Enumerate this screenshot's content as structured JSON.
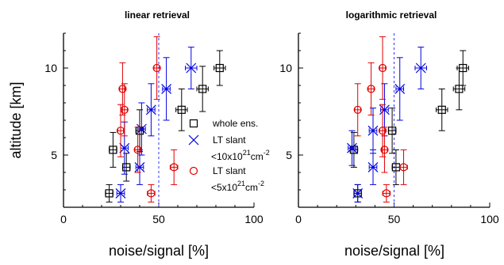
{
  "colors": {
    "black": "#000000",
    "blue": "#0000e0",
    "red": "#e00000",
    "vline": "#3333ff"
  },
  "chart_data": [
    {
      "type": "scatter",
      "title": "linear retrieval",
      "xlabel": "noise/signal [%]",
      "ylabel": "altitude [km]",
      "xlim": [
        0,
        100
      ],
      "ylim": [
        2,
        12
      ],
      "xticks": [
        0,
        50,
        100
      ],
      "yticks": [
        5,
        10
      ],
      "reference_line_x": 50,
      "series": [
        {
          "name": "whole ens.",
          "marker": "square",
          "color": "#000000",
          "points": [
            {
              "x": 24,
              "y": 2.8,
              "xerr": 2,
              "yerr": 0.5
            },
            {
              "x": 26,
              "y": 5.3,
              "xerr": 2,
              "yerr": 1.0
            },
            {
              "x": 33,
              "y": 4.3,
              "xerr": 2,
              "yerr": 0.8
            },
            {
              "x": 40,
              "y": 6.4,
              "xerr": 2,
              "yerr": 1.2
            },
            {
              "x": 62,
              "y": 7.6,
              "xerr": 3,
              "yerr": 1.2
            },
            {
              "x": 73,
              "y": 8.8,
              "xerr": 3,
              "yerr": 1.3
            },
            {
              "x": 82,
              "y": 10.0,
              "xerr": 3,
              "yerr": 1.0
            }
          ]
        },
        {
          "name": "LT slant",
          "note": "<10x10²¹cm⁻²",
          "marker": "x",
          "color": "#0000e0",
          "points": [
            {
              "x": 30,
              "y": 2.8,
              "xerr": 2,
              "yerr": 0.5
            },
            {
              "x": 32,
              "y": 5.4,
              "xerr": 2,
              "yerr": 1.5
            },
            {
              "x": 40,
              "y": 4.3,
              "xerr": 2,
              "yerr": 1.0
            },
            {
              "x": 41,
              "y": 6.5,
              "xerr": 2,
              "yerr": 1.5
            },
            {
              "x": 46,
              "y": 7.6,
              "xerr": 2,
              "yerr": 1.5
            },
            {
              "x": 54,
              "y": 8.8,
              "xerr": 2,
              "yerr": 1.8
            },
            {
              "x": 67,
              "y": 10.0,
              "xerr": 3,
              "yerr": 1.2
            }
          ]
        },
        {
          "name": "LT slant",
          "note": "<5x10²¹cm⁻²",
          "marker": "circle",
          "color": "#e00000",
          "points": [
            {
              "x": 46,
              "y": 2.8,
              "xerr": 2,
              "yerr": 0.5
            },
            {
              "x": 58,
              "y": 4.3,
              "xerr": 2,
              "yerr": 1.0
            },
            {
              "x": 39,
              "y": 5.3,
              "xerr": 1.5,
              "yerr": 1.3
            },
            {
              "x": 30,
              "y": 6.4,
              "xerr": 1.5,
              "yerr": 1.5
            },
            {
              "x": 32,
              "y": 7.6,
              "xerr": 1.5,
              "yerr": 1.5
            },
            {
              "x": 31,
              "y": 8.8,
              "xerr": 1.5,
              "yerr": 1.5
            },
            {
              "x": 49,
              "y": 10.0,
              "xerr": 1.5,
              "yerr": 1.8
            }
          ]
        }
      ],
      "legend": {
        "placement": "right",
        "entries": [
          {
            "marker": "square",
            "color": "#000000",
            "label": "whole ens."
          },
          {
            "marker": "x",
            "color": "#0000e0",
            "label": "LT slant",
            "sub": "<10x10",
            "exp1": "21",
            "mid": "cm",
            "exp2": "-2"
          },
          {
            "marker": "circle",
            "color": "#e00000",
            "label": "LT slant",
            "sub": "<5x10",
            "exp1": "21",
            "mid": "cm",
            "exp2": "-2"
          }
        ]
      }
    },
    {
      "type": "scatter",
      "title": "logarithmic retrieval",
      "xlabel": "noise/signal [%]",
      "ylabel": "",
      "xlim": [
        0,
        100
      ],
      "ylim": [
        2,
        12
      ],
      "xticks": [
        0,
        50,
        100
      ],
      "yticks": [
        5,
        10
      ],
      "reference_line_x": 50,
      "series": [
        {
          "name": "whole ens.",
          "marker": "square",
          "color": "#000000",
          "points": [
            {
              "x": 31,
              "y": 2.8,
              "xerr": 2,
              "yerr": 0.5
            },
            {
              "x": 29,
              "y": 5.3,
              "xerr": 2,
              "yerr": 1.0
            },
            {
              "x": 51,
              "y": 4.3,
              "xerr": 2,
              "yerr": 1.0
            },
            {
              "x": 49,
              "y": 6.4,
              "xerr": 2,
              "yerr": 1.3
            },
            {
              "x": 75,
              "y": 7.6,
              "xerr": 3,
              "yerr": 1.2
            },
            {
              "x": 84,
              "y": 8.8,
              "xerr": 3,
              "yerr": 1.2
            },
            {
              "x": 86,
              "y": 10.0,
              "xerr": 3,
              "yerr": 1.0
            }
          ]
        },
        {
          "name": "LT slant",
          "marker": "x",
          "color": "#0000e0",
          "points": [
            {
              "x": 31,
              "y": 2.8,
              "xerr": 2,
              "yerr": 0.5
            },
            {
              "x": 28,
              "y": 5.4,
              "xerr": 2,
              "yerr": 1.0
            },
            {
              "x": 39,
              "y": 4.3,
              "xerr": 2,
              "yerr": 1.0
            },
            {
              "x": 39,
              "y": 6.4,
              "xerr": 2,
              "yerr": 1.3
            },
            {
              "x": 45,
              "y": 7.6,
              "xerr": 2,
              "yerr": 1.5
            },
            {
              "x": 53,
              "y": 8.8,
              "xerr": 2,
              "yerr": 1.8
            },
            {
              "x": 64,
              "y": 10.0,
              "xerr": 3,
              "yerr": 1.2
            }
          ]
        },
        {
          "name": "LT slant",
          "marker": "circle",
          "color": "#e00000",
          "points": [
            {
              "x": 46,
              "y": 2.8,
              "xerr": 2,
              "yerr": 0.5
            },
            {
              "x": 55,
              "y": 4.3,
              "xerr": 2,
              "yerr": 1.0
            },
            {
              "x": 45,
              "y": 5.3,
              "xerr": 1.5,
              "yerr": 1.3
            },
            {
              "x": 31,
              "y": 7.6,
              "xerr": 1.5,
              "yerr": 1.5
            },
            {
              "x": 44,
              "y": 6.4,
              "xerr": 1.5,
              "yerr": 1.5
            },
            {
              "x": 38,
              "y": 8.8,
              "xerr": 1.5,
              "yerr": 1.5
            },
            {
              "x": 44,
              "y": 10.0,
              "xerr": 1.5,
              "yerr": 1.8
            }
          ]
        }
      ]
    }
  ]
}
